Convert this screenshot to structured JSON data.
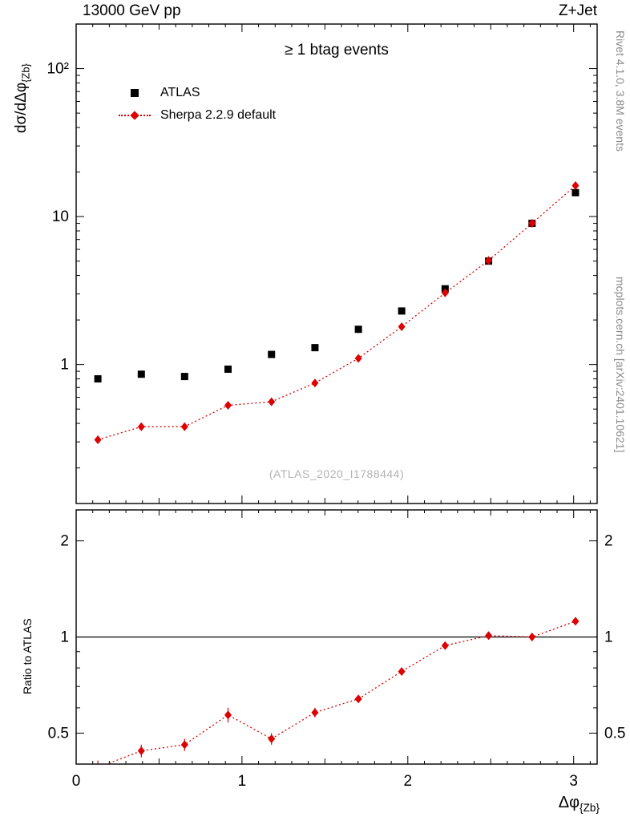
{
  "header": {
    "left": "13000 GeV pp",
    "right": "Z+Jet"
  },
  "credits": {
    "right_top": "Rivet 4.1.0, 3.8M events",
    "right_bottom": "mcplots.cern.ch [arXiv:2401.10621]"
  },
  "main_panel": {
    "title": "≥ 1 btag events",
    "watermark": "(ATLAS_2020_I1788444)",
    "ylabel_main": "dσ/dΔφ",
    "ylabel_sub": "{Zb}"
  },
  "ratio_panel": {
    "ylabel": "Ratio to ATLAS"
  },
  "xlabel": {
    "main": "Δφ",
    "sub": "{Zb}"
  },
  "legend": [
    {
      "label": "ATLAS",
      "marker": "black-square"
    },
    {
      "label": "Sherpa 2.2.9 default",
      "marker": "red-diamond-dotted-line"
    }
  ],
  "colors": {
    "atlas": "#000000",
    "sherpa": "#dd0000",
    "credits": "#8a8a8a",
    "watermark": "#b3b3b3"
  },
  "chart_data": [
    {
      "name": "main",
      "type": "scatter",
      "title": "≥ 1 btag events",
      "yscale": "log",
      "xlim": [
        0,
        3.1416
      ],
      "ylim": [
        0.115,
        200
      ],
      "x": [
        0.131,
        0.393,
        0.654,
        0.916,
        1.178,
        1.44,
        1.702,
        1.963,
        2.225,
        2.487,
        2.749,
        3.011
      ],
      "series": [
        {
          "name": "ATLAS",
          "color": "#000000",
          "marker": "square",
          "line": null,
          "values": [
            0.8,
            0.86,
            0.83,
            0.93,
            1.17,
            1.3,
            1.73,
            2.3,
            3.25,
            5.0,
            9.0,
            14.5
          ],
          "yerr": [
            0.03,
            0.03,
            0.03,
            0.03,
            0.04,
            0.05,
            0.06,
            0.08,
            0.12,
            0.18,
            0.3,
            0.5
          ]
        },
        {
          "name": "Sherpa 2.2.9 default",
          "color": "#dd0000",
          "marker": "diamond",
          "line": "dotted",
          "values": [
            0.31,
            0.38,
            0.38,
            0.53,
            0.56,
            0.75,
            1.1,
            1.8,
            3.05,
            5.05,
            9.0,
            16.2
          ],
          "yerr": [
            0.01,
            0.01,
            0.01,
            0.01,
            0.01,
            0.02,
            0.02,
            0.03,
            0.05,
            0.07,
            0.12,
            0.25
          ]
        }
      ],
      "yticks": [
        {
          "v": 1,
          "label": "1"
        },
        {
          "v": 10,
          "label": "10"
        },
        {
          "v": 100,
          "label": "10²"
        }
      ],
      "xticks": [
        0,
        1,
        2,
        3
      ],
      "labels_right": false,
      "grid": false,
      "legend_position": "top-left"
    },
    {
      "name": "ratio",
      "type": "line",
      "ylabel": "Ratio to ATLAS",
      "yscale": "log",
      "xlim": [
        0,
        3.1416
      ],
      "ylim": [
        0.4,
        2.5
      ],
      "refline": 1,
      "x": [
        0.131,
        0.393,
        0.654,
        0.916,
        1.178,
        1.44,
        1.702,
        1.963,
        2.225,
        2.487,
        2.749,
        3.011
      ],
      "series": [
        {
          "name": "Sherpa 2.2.9 default / ATLAS",
          "color": "#dd0000",
          "marker": "diamond",
          "line": "dotted",
          "values": [
            0.39,
            0.44,
            0.46,
            0.57,
            0.48,
            0.58,
            0.64,
            0.78,
            0.94,
            1.01,
            1.0,
            1.12
          ],
          "yerr": [
            0.02,
            0.02,
            0.02,
            0.03,
            0.02,
            0.02,
            0.015,
            0.015,
            0.015,
            0.012,
            0.012,
            0.02
          ]
        }
      ],
      "yticks": [
        {
          "v": 0.5,
          "label": "0.5"
        },
        {
          "v": 1,
          "label": "1"
        },
        {
          "v": 2,
          "label": "2"
        }
      ],
      "xticks": [
        0,
        1,
        2,
        3
      ],
      "xtick_labels": [
        "0",
        "1",
        "2",
        "3"
      ],
      "labels_right": true,
      "grid": false
    }
  ]
}
